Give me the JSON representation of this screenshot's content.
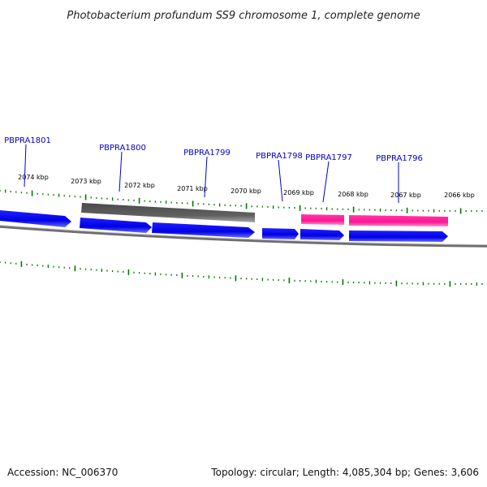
{
  "title": "Photobacterium profundum SS9 chromosome 1, complete genome",
  "footer": {
    "accession": "Accession: NC_006370",
    "summary": "Topology: circular; Length: 4,085,304 bp; Genes: 3,606"
  },
  "colors": {
    "gene_forward": "#0000ee",
    "gene_rna": "#ff1493",
    "gene_other": "#555555",
    "backbone": "#777777",
    "tick": "#007700",
    "label": "#0000cc"
  },
  "kbp_labels": [
    "2074 kbp",
    "2073 kbp",
    "2072 kbp",
    "2071 kbp",
    "2070 kbp",
    "2069 kbp",
    "2068 kbp",
    "2067 kbp",
    "2066 kbp"
  ],
  "gene_labels": [
    "PBPRA1801",
    "PBPRA1800",
    "PBPRA1799",
    "PBPRA1798",
    "PBPRA1797",
    "PBPRA1796"
  ]
}
